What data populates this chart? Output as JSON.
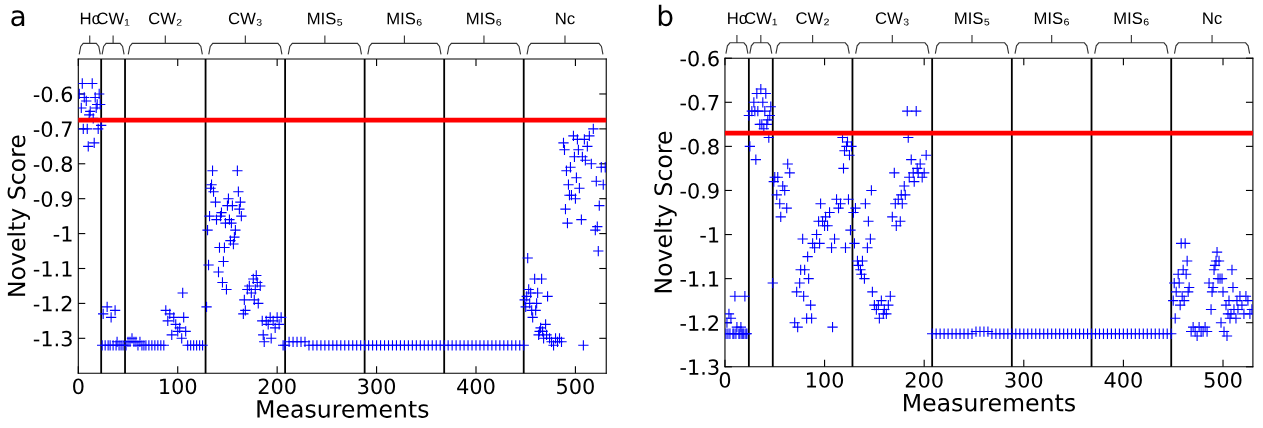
{
  "chart_data": [
    {
      "type": "scatter",
      "title": "a",
      "xlabel": "Measurements",
      "ylabel": "Novelty Score",
      "marker": "cross",
      "grid": false,
      "xlim": [
        0,
        531
      ],
      "xticks": [
        0,
        100,
        200,
        300,
        400,
        500
      ],
      "ylim": [
        -1.4,
        -0.5
      ],
      "yticks": [
        -1.3,
        -1.2,
        -1.1,
        -1,
        -0.9,
        -0.8,
        -0.7,
        -0.6
      ],
      "annotations": [
        "Hc",
        "CW₁",
        "CW₂",
        "CW₃",
        "MIS₅",
        "MIS₆",
        "MIS₆",
        "Nc"
      ],
      "ref_lines": [
        {
          "axis": "x",
          "value": 23,
          "color": "#000000"
        },
        {
          "axis": "x",
          "value": 47,
          "color": "#000000"
        },
        {
          "axis": "x",
          "value": 128,
          "color": "#000000"
        },
        {
          "axis": "x",
          "value": 208,
          "color": "#000000"
        },
        {
          "axis": "x",
          "value": 288,
          "color": "#000000"
        },
        {
          "axis": "x",
          "value": 368,
          "color": "#000000"
        },
        {
          "axis": "x",
          "value": 448,
          "color": "#000000"
        },
        {
          "axis": "y",
          "value": -0.675,
          "color": "#ff0000"
        }
      ],
      "series": [
        {
          "color": "#0000ff",
          "x": [
            1,
            3,
            4,
            5,
            6,
            8,
            9,
            10,
            11,
            12,
            14,
            15,
            16,
            17,
            18,
            19,
            20,
            21,
            22,
            23,
            24,
            25,
            27,
            29,
            30,
            32,
            33,
            35,
            37,
            38,
            39,
            41,
            43,
            45,
            48,
            50,
            52,
            54,
            56,
            58,
            60,
            62,
            64,
            66,
            68,
            71,
            74,
            77,
            80,
            83,
            86,
            88,
            90,
            92,
            94,
            96,
            98,
            100,
            102,
            104,
            105,
            106,
            108,
            110,
            113,
            116,
            119,
            122,
            125,
            129,
            130,
            131,
            132,
            133,
            134,
            135,
            136,
            138,
            139,
            141,
            142,
            143,
            144,
            145,
            146,
            147,
            148,
            149,
            150,
            151,
            152,
            153,
            154,
            155,
            156,
            157,
            158,
            160,
            161,
            162,
            163,
            164,
            166,
            167,
            168,
            170,
            172,
            174,
            176,
            177,
            178,
            179,
            180,
            181,
            183,
            185,
            186,
            187,
            189,
            191,
            193,
            194,
            196,
            198,
            200,
            202,
            204,
            206,
            208,
            212,
            216,
            220,
            224,
            228,
            232,
            236,
            240,
            244,
            248,
            252,
            256,
            260,
            264,
            268,
            272,
            276,
            280,
            284,
            288,
            292,
            296,
            300,
            304,
            308,
            312,
            316,
            320,
            324,
            328,
            332,
            336,
            340,
            344,
            348,
            352,
            356,
            360,
            364,
            368,
            372,
            376,
            380,
            384,
            388,
            392,
            396,
            400,
            404,
            408,
            412,
            416,
            420,
            424,
            428,
            432,
            436,
            440,
            444,
            448,
            449,
            450,
            451,
            452,
            453,
            454,
            455,
            456,
            457,
            459,
            460,
            461,
            462,
            463,
            464,
            465,
            466,
            467,
            468,
            470,
            471,
            472,
            474,
            476,
            478,
            480,
            482,
            484,
            486,
            488,
            489,
            490,
            491,
            492,
            493,
            494,
            495,
            496,
            498,
            499,
            500,
            501,
            502,
            503,
            504,
            506,
            507,
            508,
            509,
            510,
            512,
            514,
            516,
            518,
            520,
            521,
            522,
            523,
            524,
            526,
            528,
            530
          ],
          "values": [
            -0.6,
            -0.64,
            -0.57,
            -0.7,
            -0.61,
            -0.62,
            -0.7,
            -0.75,
            -0.66,
            -0.65,
            -0.57,
            -0.67,
            -0.74,
            -0.61,
            -0.64,
            -0.63,
            -0.7,
            -0.6,
            -0.63,
            -0.69,
            -1.32,
            -1.23,
            -1.32,
            -1.21,
            -1.32,
            -1.32,
            -1.24,
            -1.32,
            -1.22,
            -1.32,
            -1.31,
            -1.32,
            -1.32,
            -1.32,
            -1.32,
            -1.31,
            -1.31,
            -1.3,
            -1.31,
            -1.31,
            -1.32,
            -1.31,
            -1.32,
            -1.32,
            -1.32,
            -1.32,
            -1.32,
            -1.32,
            -1.32,
            -1.32,
            -1.32,
            -1.22,
            -1.25,
            -1.23,
            -1.29,
            -1.24,
            -1.26,
            -1.28,
            -1.27,
            -1.3,
            -1.17,
            -1.24,
            -1.28,
            -1.32,
            -1.32,
            -1.32,
            -1.32,
            -1.32,
            -1.32,
            -1.21,
            -0.99,
            -1.09,
            -0.95,
            -0.87,
            -0.86,
            -0.82,
            -0.88,
            -0.91,
            -0.96,
            -1.11,
            -1.04,
            -0.95,
            -0.94,
            -1.14,
            -1.08,
            -1.04,
            -0.97,
            -1.16,
            -0.92,
            -0.9,
            -0.96,
            -1.02,
            -0.97,
            -0.92,
            -1.03,
            -1.01,
            -0.99,
            -0.82,
            -0.88,
            -0.93,
            -0.91,
            -0.95,
            -1.23,
            -1.19,
            -1.22,
            -1.16,
            -1.15,
            -1.17,
            -1.13,
            -1.19,
            -1.16,
            -1.12,
            -1.14,
            -1.2,
            -1.15,
            -1.25,
            -1.29,
            -1.31,
            -1.25,
            -1.26,
            -1.24,
            -1.3,
            -1.25,
            -1.27,
            -1.24,
            -1.26,
            -1.24,
            -1.32,
            -1.32,
            -1.31,
            -1.31,
            -1.31,
            -1.31,
            -1.31,
            -1.32,
            -1.32,
            -1.32,
            -1.32,
            -1.32,
            -1.32,
            -1.32,
            -1.32,
            -1.32,
            -1.32,
            -1.32,
            -1.32,
            -1.32,
            -1.32,
            -1.32,
            -1.32,
            -1.32,
            -1.32,
            -1.32,
            -1.32,
            -1.32,
            -1.32,
            -1.32,
            -1.32,
            -1.32,
            -1.32,
            -1.32,
            -1.32,
            -1.32,
            -1.32,
            -1.32,
            -1.32,
            -1.32,
            -1.32,
            -1.32,
            -1.32,
            -1.32,
            -1.32,
            -1.32,
            -1.32,
            -1.32,
            -1.32,
            -1.32,
            -1.32,
            -1.32,
            -1.32,
            -1.32,
            -1.32,
            -1.32,
            -1.32,
            -1.32,
            -1.32,
            -1.32,
            -1.32,
            -1.32,
            -1.19,
            -1.21,
            -1.18,
            -1.07,
            -1.16,
            -1.2,
            -1.17,
            -1.22,
            -1.24,
            -1.13,
            -1.22,
            -1.2,
            -1.17,
            -1.29,
            -1.28,
            -1.27,
            -1.13,
            -1.28,
            -1.3,
            -1.26,
            -1.29,
            -1.18,
            -1.3,
            -1.31,
            -1.32,
            -1.3,
            -1.31,
            -1.3,
            -1.31,
            -0.74,
            -0.76,
            -0.93,
            -0.82,
            -0.97,
            -0.86,
            -0.89,
            -0.81,
            -0.89,
            -0.72,
            -0.78,
            -0.9,
            -0.84,
            -0.73,
            -0.76,
            -0.87,
            -0.96,
            -0.78,
            -1.32,
            -0.73,
            -0.79,
            -0.75,
            -0.72,
            -0.8,
            -0.7,
            -0.99,
            -0.85,
            -0.98,
            -1.05,
            -0.92,
            -0.81,
            -0.86,
            -0.81
          ]
        }
      ]
    },
    {
      "type": "scatter",
      "title": "b",
      "xlabel": "Measurements",
      "ylabel": "Novelty Score",
      "marker": "cross",
      "grid": false,
      "xlim": [
        0,
        530
      ],
      "xticks": [
        0,
        100,
        200,
        300,
        400,
        500
      ],
      "ylim": [
        -1.3,
        -0.6
      ],
      "yticks": [
        -1.3,
        -1.2,
        -1.1,
        -1,
        -0.9,
        -0.8,
        -0.7,
        -0.6
      ],
      "annotations": [
        "Hc",
        "CW₁",
        "CW₂",
        "CW₃",
        "MIS₅",
        "MIS₆",
        "MIS₆",
        "Nc"
      ],
      "ref_lines": [
        {
          "axis": "x",
          "value": 24,
          "color": "#000000"
        },
        {
          "axis": "x",
          "value": 48,
          "color": "#000000"
        },
        {
          "axis": "x",
          "value": 128,
          "color": "#000000"
        },
        {
          "axis": "x",
          "value": 208,
          "color": "#000000"
        },
        {
          "axis": "x",
          "value": 288,
          "color": "#000000"
        },
        {
          "axis": "x",
          "value": 368,
          "color": "#000000"
        },
        {
          "axis": "x",
          "value": 448,
          "color": "#000000"
        },
        {
          "axis": "y",
          "value": -0.77,
          "color": "#ff0000"
        }
      ],
      "series": [
        {
          "color": "#0000ff",
          "x": [
            1,
            2,
            3,
            4,
            5,
            6,
            8,
            9,
            10,
            11,
            12,
            14,
            15,
            16,
            17,
            18,
            19,
            20,
            21,
            22,
            24,
            25,
            27,
            29,
            30,
            31,
            32,
            33,
            35,
            36,
            37,
            38,
            39,
            40,
            41,
            42,
            43,
            44,
            45,
            46,
            48,
            49,
            50,
            52,
            53,
            55,
            56,
            58,
            60,
            62,
            63,
            65,
            70,
            72,
            73,
            75,
            76,
            78,
            79,
            80,
            82,
            83,
            84,
            86,
            87,
            88,
            90,
            92,
            94,
            95,
            96,
            98,
            100,
            101,
            103,
            105,
            107,
            108,
            110,
            112,
            114,
            116,
            118,
            119,
            120,
            121,
            122,
            123,
            124,
            125,
            126,
            127,
            129,
            130,
            131,
            133,
            134,
            136,
            137,
            138,
            140,
            141,
            143,
            144,
            146,
            147,
            148,
            150,
            152,
            154,
            155,
            157,
            159,
            160,
            162,
            164,
            166,
            168,
            170,
            171,
            172,
            174,
            176,
            177,
            178,
            180,
            181,
            183,
            184,
            185,
            187,
            189,
            190,
            192,
            193,
            194,
            196,
            198,
            200,
            202,
            208,
            212,
            216,
            220,
            224,
            228,
            232,
            236,
            240,
            244,
            248,
            252,
            256,
            260,
            264,
            268,
            272,
            276,
            280,
            284,
            288,
            292,
            296,
            300,
            304,
            308,
            312,
            316,
            320,
            324,
            328,
            332,
            336,
            340,
            344,
            348,
            352,
            356,
            360,
            364,
            368,
            372,
            376,
            380,
            384,
            388,
            392,
            396,
            400,
            404,
            408,
            412,
            416,
            420,
            424,
            428,
            432,
            436,
            440,
            444,
            448,
            450,
            451,
            452,
            453,
            455,
            456,
            457,
            458,
            459,
            460,
            461,
            462,
            463,
            464,
            465,
            466,
            468,
            470,
            472,
            474,
            476,
            478,
            480,
            482,
            484,
            486,
            488,
            489,
            490,
            491,
            492,
            493,
            494,
            495,
            496,
            497,
            498,
            499,
            500,
            501,
            503,
            504,
            505,
            506,
            507,
            508,
            509,
            510,
            511,
            513,
            514,
            515,
            517,
            519,
            521,
            523,
            525,
            527,
            529
          ],
          "values": [
            -1.225,
            -1.2,
            -1.225,
            -1.18,
            -1.225,
            -1.19,
            -1.225,
            -1.225,
            -1.14,
            -1.225,
            -1.21,
            -1.225,
            -1.225,
            -1.21,
            -1.225,
            -1.225,
            -1.225,
            -1.14,
            -1.225,
            -1.225,
            -0.73,
            -0.8,
            -0.72,
            -0.7,
            -0.72,
            -0.83,
            -0.68,
            -0.72,
            -0.75,
            -0.67,
            -0.75,
            -0.7,
            -0.76,
            -0.72,
            -0.68,
            -0.75,
            -0.74,
            -0.78,
            -0.73,
            -0.71,
            -1.11,
            -0.88,
            -0.87,
            -0.91,
            -0.87,
            -0.93,
            -0.96,
            -0.89,
            -0.9,
            -0.94,
            -0.84,
            -0.86,
            -1.2,
            -1.13,
            -1.21,
            -1.11,
            -1.08,
            -1.01,
            -1.14,
            -1.08,
            -1.19,
            -1.05,
            -1.1,
            -1.16,
            -1.19,
            -1.02,
            -1.03,
            -1,
            -0.97,
            -1.02,
            -0.93,
            -0.97,
            -0.98,
            -0.96,
            -0.98,
            -0.95,
            -1.03,
            -1.21,
            -1.01,
            -0.92,
            -0.94,
            -0.93,
            -0.78,
            -0.85,
            -0.81,
            -1.03,
            -0.8,
            -0.79,
            -0.92,
            -0.82,
            -0.99,
            -0.8,
            -0.95,
            -1.02,
            -0.94,
            -1.06,
            -1.07,
            -1.08,
            -1.09,
            -1.06,
            -1.1,
            -0.93,
            -1.03,
            -0.97,
            -1.01,
            -0.9,
            -1.13,
            -1.16,
            -1.17,
            -1.16,
            -1.19,
            -1.15,
            -1.18,
            -1.17,
            -1.18,
            -1.16,
            -1.14,
            -0.96,
            -0.86,
            -0.93,
            -0.98,
            -0.92,
            -0.97,
            -0.91,
            -0.93,
            -0.89,
            -0.91,
            -0.72,
            -0.78,
            -0.87,
            -0.83,
            -0.86,
            -0.88,
            -0.72,
            -0.85,
            -0.86,
            -0.84,
            -0.87,
            -0.86,
            -0.82,
            -1.225,
            -1.225,
            -1.225,
            -1.225,
            -1.225,
            -1.225,
            -1.225,
            -1.225,
            -1.225,
            -1.225,
            -1.225,
            -1.22,
            -1.22,
            -1.22,
            -1.22,
            -1.225,
            -1.225,
            -1.225,
            -1.225,
            -1.225,
            -1.225,
            -1.225,
            -1.225,
            -1.225,
            -1.225,
            -1.225,
            -1.225,
            -1.225,
            -1.225,
            -1.225,
            -1.225,
            -1.225,
            -1.225,
            -1.225,
            -1.225,
            -1.225,
            -1.225,
            -1.225,
            -1.225,
            -1.225,
            -1.225,
            -1.225,
            -1.225,
            -1.225,
            -1.225,
            -1.225,
            -1.225,
            -1.225,
            -1.225,
            -1.225,
            -1.225,
            -1.225,
            -1.225,
            -1.225,
            -1.225,
            -1.225,
            -1.225,
            -1.225,
            -1.225,
            -1.225,
            -1.225,
            -1.15,
            -1.11,
            -1.19,
            -1.13,
            -1.09,
            -1.11,
            -1.16,
            -1.02,
            -1.14,
            -1.08,
            -1.15,
            -1.02,
            -1.09,
            -1.06,
            -1.13,
            -1.12,
            -1.22,
            -1.21,
            -1.22,
            -1.23,
            -1.21,
            -1.22,
            -1.22,
            -1.21,
            -1.22,
            -1.11,
            -1.17,
            -1.13,
            -1.12,
            -1.08,
            -1.07,
            -1.06,
            -1.04,
            -1.1,
            -1.06,
            -1.1,
            -1.2,
            -1.1,
            -1.13,
            -1.22,
            -1.16,
            -1.23,
            -1.18,
            -1.15,
            -1.19,
            -1.18,
            -1.08,
            -1.12,
            -1.17,
            -1.19,
            -1.15,
            -1.17,
            -1.14,
            -1.16,
            -1.18,
            -1.14,
            -1.15,
            -1.18,
            -1.17
          ]
        }
      ]
    }
  ]
}
